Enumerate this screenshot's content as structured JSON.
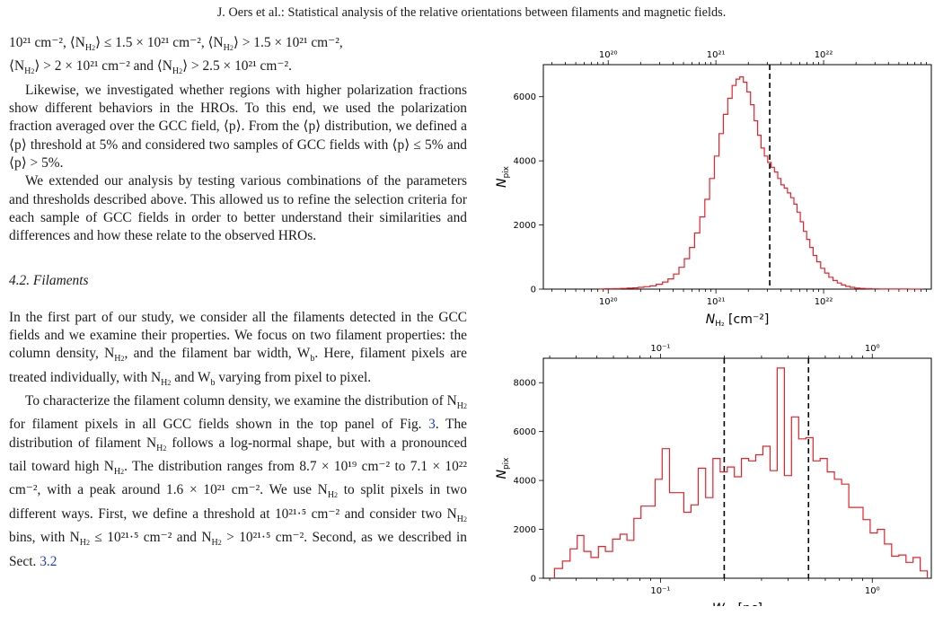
{
  "header": {
    "running_title": "J. Oers et al.: Statistical analysis of the relative orientations between filaments and magnetic fields."
  },
  "text": {
    "p1_line1": "10²¹ cm⁻², ⟨N",
    "p1_line1_b": "⟩ ≤ 1.5 × 10²¹ cm⁻², ⟨N",
    "p1_line1_c": "⟩ > 1.5 × 10²¹ cm⁻²,",
    "p1_line2_a": "⟨N",
    "p1_line2_b": "⟩ > 2 × 10²¹ cm⁻² and ⟨N",
    "p1_line2_c": "⟩ > 2.5 × 10²¹ cm⁻².",
    "sub_h2": "H",
    "sub_2": "2",
    "p2": "Likewise, we investigated whether regions with higher polarization fractions show different behaviors in the HROs. To this end, we used the polarization fraction averaged over the GCC field, ⟨p⟩. From the ⟨p⟩ distribution, we defined a ⟨p⟩ threshold at 5% and considered two samples of GCC fields with ⟨p⟩ ≤ 5% and ⟨p⟩ > 5%.",
    "p3": "We extended our analysis by testing various combinations of the parameters and thresholds described above. This allowed us to refine the selection criteria for each sample of GCC fields in order to better understand their similarities and differences and how these relate to the observed HROs.",
    "section_heading": "4.2. Filaments",
    "p4": "In the first part of our study, we consider all the filaments detected in the GCC fields and we examine their properties. We focus on two filament properties: the column density, N",
    "p4_b": ", and the filament bar width, W",
    "p4_c": ". Here, filament pixels are treated individually, with N",
    "p4_d": " and W",
    "p4_e": " varying from pixel to pixel.",
    "sub_b": "b",
    "p5_a": "To characterize the filament column density, we examine the distribution of N",
    "p5_b": " for filament pixels in all GCC fields shown in the top panel of Fig. ",
    "p5_ref": "3",
    "p5_c": ". The distribution of filament N",
    "p5_d": " follows a log-normal shape, but with a pronounced tail toward high N",
    "p5_e": ". The distribution ranges from 8.7 × 10¹⁹ cm⁻² to 7.1 × 10²² cm⁻², with a peak around 1.6 × 10²¹ cm⁻². We use N",
    "p5_f": " to split pixels in two different ways. First, we define a threshold at 10²¹·⁵ cm⁻² and consider two N",
    "p5_g": " bins, with N",
    "p5_h": " ≤ 10²¹·⁵ cm⁻²",
    "p5_i": "and N",
    "p5_j": " > 10²¹·⁵ cm⁻². Second, as we described in Sect. ",
    "p5_ref2": "3.2"
  },
  "chart_data": [
    {
      "type": "histogram",
      "xlabel": "N_H2 [cm⁻²]",
      "ylabel": "N_pix",
      "x_scale": "log",
      "xlim": [
        2.5e+19,
        1e+23
      ],
      "ylim": [
        0,
        7000
      ],
      "x_ticks": [
        "10²⁰",
        "10²¹",
        "10²²"
      ],
      "top_ticks": [
        "10²⁰",
        "10²¹",
        "10²²"
      ],
      "y_ticks": [
        "0",
        "2000",
        "4000",
        "6000"
      ],
      "threshold_line": 3.16e+21,
      "bins": [
        [
          8.7e+19,
          5
        ],
        [
          1e+20,
          10
        ],
        [
          1.2e+20,
          15
        ],
        [
          1.4e+20,
          22
        ],
        [
          1.6e+20,
          30
        ],
        [
          1.8e+20,
          40
        ],
        [
          2e+20,
          55
        ],
        [
          2.3e+20,
          75
        ],
        [
          2.6e+20,
          100
        ],
        [
          3e+20,
          150
        ],
        [
          3.4e+20,
          220
        ],
        [
          3.8e+20,
          320
        ],
        [
          4.3e+20,
          470
        ],
        [
          4.8e+20,
          680
        ],
        [
          5.4e+20,
          950
        ],
        [
          6e+20,
          1300
        ],
        [
          6.7e+20,
          1750
        ],
        [
          7.5e+20,
          2250
        ],
        [
          8.3e+20,
          2800
        ],
        [
          9.2e+20,
          3450
        ],
        [
          1.02e+21,
          4150
        ],
        [
          1.12e+21,
          4850
        ],
        [
          1.23e+21,
          5450
        ],
        [
          1.35e+21,
          5950
        ],
        [
          1.48e+21,
          6350
        ],
        [
          1.6e+21,
          6550
        ],
        [
          1.73e+21,
          6620
        ],
        [
          1.87e+21,
          6450
        ],
        [
          2.02e+21,
          6150
        ],
        [
          2.18e+21,
          5750
        ],
        [
          2.35e+21,
          5250
        ],
        [
          2.53e+21,
          4800
        ],
        [
          2.72e+21,
          4400
        ],
        [
          2.92e+21,
          4150
        ],
        [
          3.14e+21,
          3950
        ],
        [
          3.37e+21,
          3800
        ],
        [
          3.62e+21,
          3650
        ],
        [
          3.88e+21,
          3450
        ],
        [
          4.16e+21,
          3250
        ],
        [
          4.46e+21,
          3150
        ],
        [
          4.78e+21,
          3000
        ],
        [
          5.12e+21,
          2850
        ],
        [
          5.48e+21,
          2650
        ],
        [
          5.87e+21,
          2400
        ],
        [
          6.28e+21,
          2100
        ],
        [
          6.72e+21,
          1800
        ],
        [
          7.2e+21,
          1550
        ],
        [
          7.7e+21,
          1300
        ],
        [
          8.3e+21,
          1050
        ],
        [
          9e+21,
          850
        ],
        [
          9.8e+21,
          650
        ],
        [
          1.07e+22,
          500
        ],
        [
          1.17e+22,
          370
        ],
        [
          1.28e+22,
          270
        ],
        [
          1.4e+22,
          190
        ],
        [
          1.53e+22,
          130
        ],
        [
          1.68e+22,
          85
        ],
        [
          1.85e+22,
          55
        ],
        [
          2.05e+22,
          35
        ],
        [
          2.3e+22,
          22
        ],
        [
          2.6e+22,
          14
        ],
        [
          3e+22,
          9
        ],
        [
          3.5e+22,
          5
        ],
        [
          4.2e+22,
          3
        ],
        [
          5.2e+22,
          2
        ],
        [
          7.1e+22,
          1
        ]
      ]
    },
    {
      "type": "histogram",
      "xlabel": "W_b* [pc]",
      "ylabel": "N_pix",
      "x_scale": "log",
      "xlim": [
        0.028,
        1.9
      ],
      "ylim": [
        0,
        9000
      ],
      "x_ticks": [
        "10⁻¹",
        "10⁰"
      ],
      "top_ticks": [
        "10⁻¹",
        "10⁰"
      ],
      "y_ticks": [
        "0",
        "2000",
        "4000",
        "6000",
        "8000"
      ],
      "threshold_lines": [
        0.2,
        0.5
      ],
      "bins": [
        [
          0.033,
          400
        ],
        [
          0.036,
          700
        ],
        [
          0.039,
          1200
        ],
        [
          0.042,
          1750
        ],
        [
          0.045,
          1100
        ],
        [
          0.049,
          850
        ],
        [
          0.053,
          1300
        ],
        [
          0.057,
          1100
        ],
        [
          0.062,
          1600
        ],
        [
          0.067,
          1800
        ],
        [
          0.072,
          1550
        ],
        [
          0.078,
          2450
        ],
        [
          0.084,
          2950
        ],
        [
          0.091,
          2950
        ],
        [
          0.098,
          4050
        ],
        [
          0.106,
          5300
        ],
        [
          0.115,
          3500
        ],
        [
          0.124,
          3500
        ],
        [
          0.134,
          2700
        ],
        [
          0.145,
          3000
        ],
        [
          0.157,
          4500
        ],
        [
          0.17,
          3300
        ],
        [
          0.184,
          4900
        ],
        [
          0.199,
          4350
        ],
        [
          0.215,
          4550
        ],
        [
          0.232,
          4150
        ],
        [
          0.251,
          4900
        ],
        [
          0.271,
          4800
        ],
        [
          0.293,
          5050
        ],
        [
          0.317,
          5400
        ],
        [
          0.342,
          4400
        ],
        [
          0.37,
          8600
        ],
        [
          0.4,
          4200
        ],
        [
          0.432,
          6600
        ],
        [
          0.467,
          5700
        ],
        [
          0.505,
          5750
        ],
        [
          0.546,
          4800
        ],
        [
          0.59,
          4900
        ],
        [
          0.637,
          4350
        ],
        [
          0.689,
          4050
        ],
        [
          0.745,
          3850
        ],
        [
          0.805,
          2900
        ],
        [
          0.87,
          2900
        ],
        [
          0.94,
          2400
        ],
        [
          1.016,
          1850
        ],
        [
          1.098,
          2000
        ],
        [
          1.187,
          1400
        ],
        [
          1.283,
          900
        ],
        [
          1.387,
          950
        ],
        [
          1.5,
          650
        ],
        [
          1.62,
          850
        ],
        [
          1.75,
          300
        ]
      ]
    }
  ]
}
